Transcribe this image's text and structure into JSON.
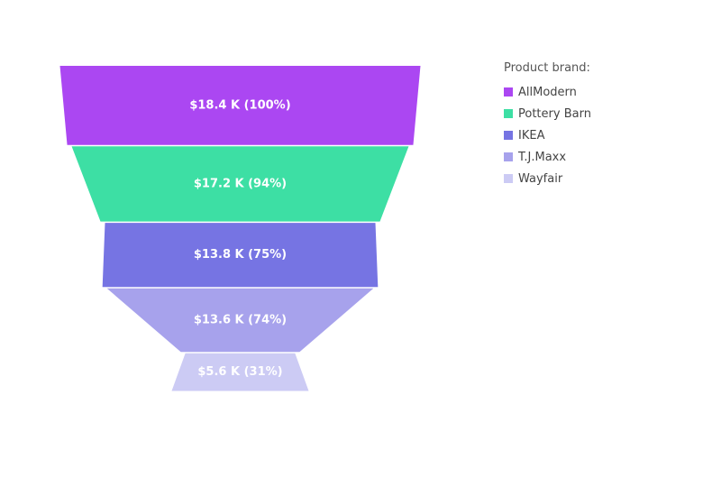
{
  "chart_data": {
    "type": "funnel",
    "legend_title": "Product brand:",
    "legend_position": "top-right",
    "categories": [
      "AllModern",
      "Pottery Barn",
      "IKEA",
      "T.J.Maxx",
      "Wayfair"
    ],
    "values": [
      18.4,
      17.2,
      13.8,
      13.6,
      5.6
    ],
    "value_labels": [
      "$18.4 K (100%)",
      "$17.2 K (94%)",
      "$13.8 K (75%)",
      "$13.6 K (74%)",
      "$5.6 K (31%)"
    ],
    "colors": [
      "#ab47f2",
      "#3ddfa4",
      "#7674e3",
      "#a7a2ec",
      "#cccbf4"
    ]
  }
}
